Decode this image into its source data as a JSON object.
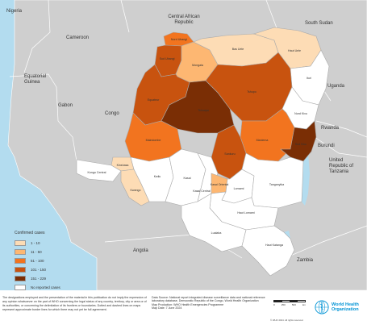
{
  "countries": {
    "nigeria": "Nigeria",
    "central_african_republic": "Central African\nRepublic",
    "south_sudan": "South Sudan",
    "cameroon": "Cameroon",
    "equatorial_guinea": "Equatorial\nGuinea",
    "gabon": "Gabon",
    "congo": "Congo",
    "uganda": "Uganda",
    "rwanda": "Rwanda",
    "burundi": "Burundi",
    "tanzania": "United\nRepublic of\nTanzania",
    "angola": "Angola",
    "zambia": "Zambia"
  },
  "provinces": [
    {
      "name": "Nord Ubangi",
      "cases_class": "51 - 100"
    },
    {
      "name": "Sud Ubangi",
      "cases_class": "101 - 150"
    },
    {
      "name": "Mongala",
      "cases_class": "11 - 50"
    },
    {
      "name": "Bas Uele",
      "cases_class": "1 - 10"
    },
    {
      "name": "Haut Uele",
      "cases_class": "1 - 10"
    },
    {
      "name": "Ituri",
      "cases_class": "No reported cases"
    },
    {
      "name": "Tshopo",
      "cases_class": "101 - 150"
    },
    {
      "name": "Equateur",
      "cases_class": "101 - 150"
    },
    {
      "name": "Tshuapa",
      "cases_class": "151 - 229"
    },
    {
      "name": "Nord Kivu",
      "cases_class": "No reported cases"
    },
    {
      "name": "Maniema",
      "cases_class": "51 - 100"
    },
    {
      "name": "Sud Kivu",
      "cases_class": "151 - 229"
    },
    {
      "name": "Sankuru",
      "cases_class": "101 - 150"
    },
    {
      "name": "Maindombe",
      "cases_class": "51 - 100"
    },
    {
      "name": "Kinshasa",
      "cases_class": "1 - 10"
    },
    {
      "name": "Kongo Central",
      "cases_class": "No reported cases"
    },
    {
      "name": "Kwilu",
      "cases_class": "No reported cases"
    },
    {
      "name": "Kwango",
      "cases_class": "1 - 10"
    },
    {
      "name": "Kasai",
      "cases_class": "No reported cases"
    },
    {
      "name": "Kasai Central",
      "cases_class": "No reported cases"
    },
    {
      "name": "Kasai Oriental",
      "cases_class": "11 - 50"
    },
    {
      "name": "Lomami",
      "cases_class": "No reported cases"
    },
    {
      "name": "Tanganyika",
      "cases_class": "No reported cases"
    },
    {
      "name": "Haut Lomami",
      "cases_class": "No reported cases"
    },
    {
      "name": "Lualaba",
      "cases_class": "No reported cases"
    },
    {
      "name": "Haut Katanga",
      "cases_class": "No reported cases"
    }
  ],
  "legend": {
    "title": "Confirmed cases",
    "items": [
      {
        "label": "1 - 10",
        "color": "#fddcb5"
      },
      {
        "label": "11 - 50",
        "color": "#fdb772"
      },
      {
        "label": "51 - 100",
        "color": "#f2741f"
      },
      {
        "label": "101 - 150",
        "color": "#c8530f"
      },
      {
        "label": "151 - 229",
        "color": "#7a2e05"
      },
      {
        "label": "No reported cases",
        "color": "#ffffff"
      }
    ]
  },
  "colors": {
    "water": "#b3dcef",
    "neighbor": "#cfcfcf",
    "border": "#999999"
  },
  "disclaimer": "The designations employed and the presentation of the material in this publication do not imply the expression of any opinion whatsoever on the part of WHO concerning the legal status of any country, territory, city or area or of its authorities, or concerning the delimitation of its frontiers or boundaries. Dotted and dashed lines on maps represent approximate border lines for which there may not yet be full agreement.",
  "source": "Data Source: National report integrated disease surveillance data and national reference laboratory database, Democratic Republic of the Congo, World Health Organization\nMap Production: WHO Health Emergencies Programme\nMap Date: 7 June 2024",
  "scale_ticks": [
    "0",
    "250",
    "500",
    "km"
  ],
  "copyright": "© WHO 2024. All rights reserved.",
  "who_logo_text": "World Health\nOrganization"
}
